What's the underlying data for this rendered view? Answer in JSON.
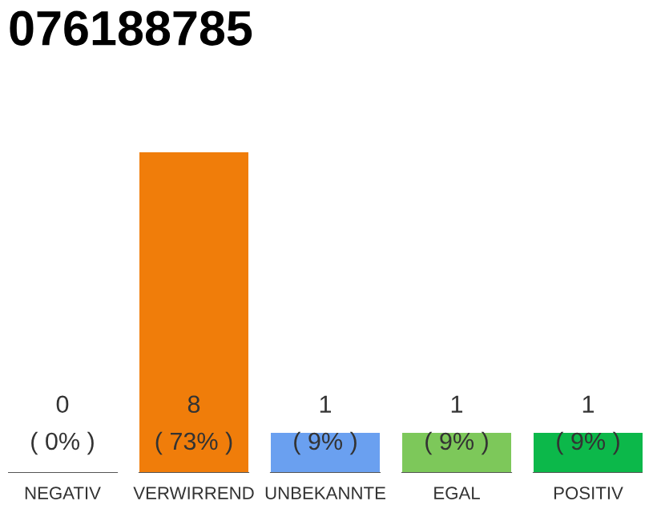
{
  "chart_data": {
    "type": "bar",
    "title": "076188785",
    "categories": [
      "NEGATIV",
      "VERWIRREND",
      "UNBEKANNTE",
      "EGAL",
      "POSITIV"
    ],
    "values": [
      0,
      8,
      1,
      1,
      1
    ],
    "ylim": [
      0,
      8
    ],
    "colors": [
      "#d9d9d9",
      "#f07d0a",
      "#6aa0f0",
      "#7dc85a",
      "#0cb84a"
    ],
    "value_labels": [
      "0\n( 0% )",
      "8\n( 73% )",
      "1\n( 9% )",
      "1\n( 9% )",
      "1\n( 9% )"
    ],
    "grid": false,
    "legend": false
  }
}
